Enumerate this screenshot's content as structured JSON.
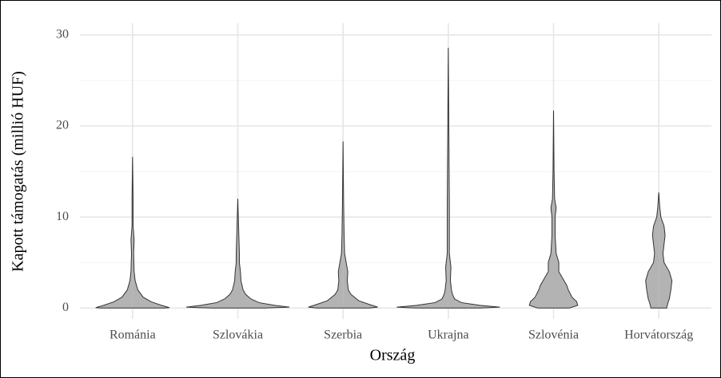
{
  "chart_data": {
    "type": "violin",
    "xlabel": "Ország",
    "ylabel": "Kapott támogatás (millió HUF)",
    "categories": [
      "Románia",
      "Szlovákia",
      "Szerbia",
      "Ukrajna",
      "Szlovénia",
      "Horvátország"
    ],
    "violins": [
      {
        "y": [
          0,
          0.05,
          0.3,
          0.7,
          1.2,
          2,
          3,
          4,
          6,
          7.5,
          9,
          12,
          16.6
        ],
        "width": [
          0.6,
          0.7,
          0.55,
          0.35,
          0.2,
          0.1,
          0.05,
          0.03,
          0.02,
          0.03,
          0.01,
          0.01,
          0
        ]
      },
      {
        "y": [
          0,
          0.1,
          0.3,
          0.6,
          1,
          1.5,
          2,
          3,
          4,
          5,
          6,
          8,
          10,
          12
        ],
        "width": [
          0.5,
          0.98,
          0.7,
          0.4,
          0.25,
          0.15,
          0.1,
          0.06,
          0.05,
          0.03,
          0.03,
          0.02,
          0.01,
          0
        ]
      },
      {
        "y": [
          0,
          0.1,
          0.4,
          0.8,
          1.5,
          2,
          3,
          4,
          5,
          6,
          8,
          12,
          18.3
        ],
        "width": [
          0.5,
          0.66,
          0.5,
          0.3,
          0.15,
          0.1,
          0.08,
          0.09,
          0.06,
          0.03,
          0.02,
          0.01,
          0
        ]
      },
      {
        "y": [
          0,
          0.1,
          0.3,
          0.6,
          1,
          1.5,
          2,
          3,
          4.5,
          6,
          8,
          11.5,
          20,
          28.6
        ],
        "width": [
          0.6,
          0.98,
          0.6,
          0.25,
          0.12,
          0.08,
          0.06,
          0.04,
          0.05,
          0.02,
          0.02,
          0.02,
          0.01,
          0
        ]
      },
      {
        "y": [
          0,
          0.3,
          0.7,
          1.2,
          2,
          2.5,
          3,
          4,
          5,
          6,
          8,
          10,
          11,
          12,
          15,
          21.7
        ],
        "width": [
          0.3,
          0.46,
          0.44,
          0.35,
          0.28,
          0.25,
          0.2,
          0.1,
          0.1,
          0.05,
          0.03,
          0.03,
          0.05,
          0.02,
          0.01,
          0
        ]
      },
      {
        "y": [
          0,
          0.5,
          1,
          2,
          3,
          4,
          5,
          6,
          7,
          8,
          9,
          10,
          11,
          12.7
        ],
        "width": [
          0.15,
          0.17,
          0.2,
          0.23,
          0.25,
          0.2,
          0.1,
          0.08,
          0.1,
          0.12,
          0.1,
          0.04,
          0.02,
          0
        ]
      }
    ],
    "color": "#b3b3b3",
    "ylim": [
      -1.2,
      31.3
    ],
    "yticks": [
      0,
      10,
      20,
      30
    ],
    "yminor": [
      5,
      15,
      25
    ],
    "grid": true
  }
}
